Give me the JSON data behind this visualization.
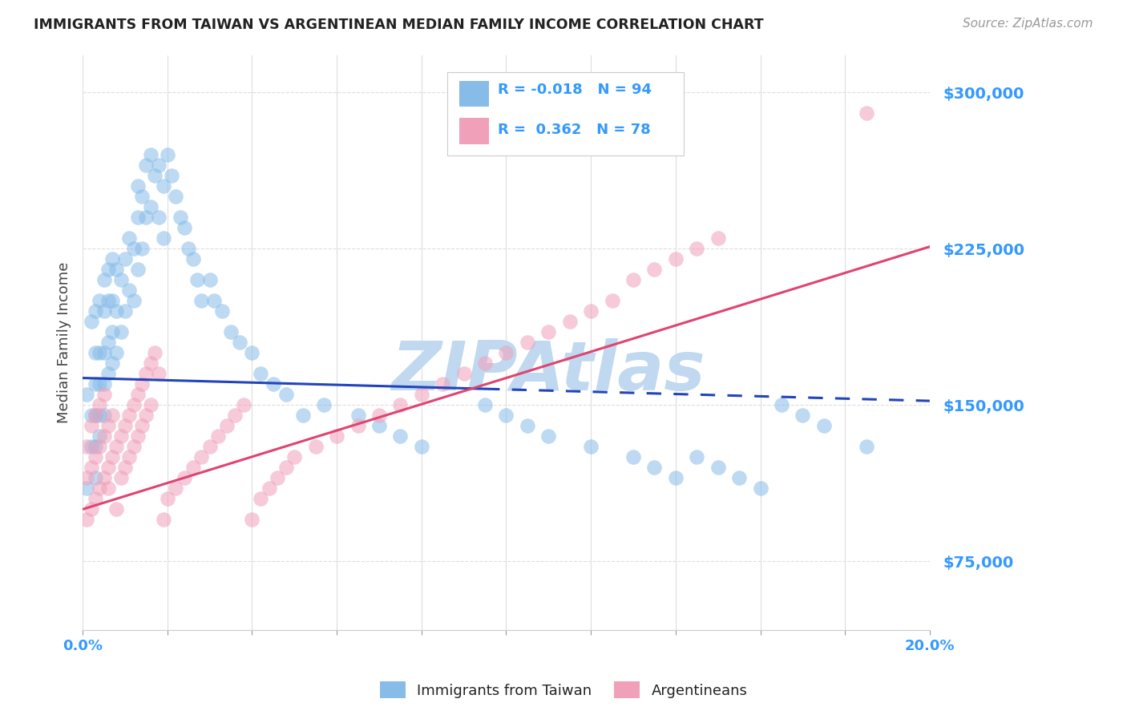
{
  "title": "IMMIGRANTS FROM TAIWAN VS ARGENTINEAN MEDIAN FAMILY INCOME CORRELATION CHART",
  "source": "Source: ZipAtlas.com",
  "ylabel": "Median Family Income",
  "yticks": [
    75000,
    150000,
    225000,
    300000
  ],
  "ytick_labels": [
    "$75,000",
    "$150,000",
    "$225,000",
    "$300,000"
  ],
  "xmin": 0.0,
  "xmax": 0.2,
  "ymin": 42000,
  "ymax": 318000,
  "watermark": "ZIPAtlas",
  "legend_R_N": [
    {
      "R": "-0.018",
      "N": "94",
      "color": "#a8c8e8"
    },
    {
      "R": "0.362",
      "N": "78",
      "color": "#f4a8be"
    }
  ],
  "legend_bottom": [
    "Immigrants from Taiwan",
    "Argentineans"
  ],
  "blue_scatter_x": [
    0.001,
    0.001,
    0.002,
    0.002,
    0.002,
    0.003,
    0.003,
    0.003,
    0.003,
    0.003,
    0.003,
    0.004,
    0.004,
    0.004,
    0.004,
    0.004,
    0.005,
    0.005,
    0.005,
    0.005,
    0.005,
    0.006,
    0.006,
    0.006,
    0.006,
    0.007,
    0.007,
    0.007,
    0.007,
    0.008,
    0.008,
    0.008,
    0.009,
    0.009,
    0.01,
    0.01,
    0.011,
    0.011,
    0.012,
    0.012,
    0.013,
    0.013,
    0.013,
    0.014,
    0.014,
    0.015,
    0.015,
    0.016,
    0.016,
    0.017,
    0.018,
    0.018,
    0.019,
    0.019,
    0.02,
    0.021,
    0.022,
    0.023,
    0.024,
    0.025,
    0.026,
    0.027,
    0.028,
    0.03,
    0.031,
    0.033,
    0.035,
    0.037,
    0.04,
    0.042,
    0.045,
    0.048,
    0.052,
    0.057,
    0.065,
    0.07,
    0.075,
    0.08,
    0.095,
    0.1,
    0.105,
    0.11,
    0.12,
    0.13,
    0.135,
    0.14,
    0.145,
    0.15,
    0.155,
    0.16,
    0.165,
    0.17,
    0.175,
    0.185
  ],
  "blue_scatter_y": [
    155000,
    110000,
    130000,
    145000,
    190000,
    175000,
    195000,
    160000,
    145000,
    130000,
    115000,
    200000,
    175000,
    160000,
    145000,
    135000,
    210000,
    195000,
    175000,
    160000,
    145000,
    215000,
    200000,
    180000,
    165000,
    220000,
    200000,
    185000,
    170000,
    215000,
    195000,
    175000,
    210000,
    185000,
    220000,
    195000,
    230000,
    205000,
    225000,
    200000,
    255000,
    240000,
    215000,
    250000,
    225000,
    265000,
    240000,
    270000,
    245000,
    260000,
    265000,
    240000,
    255000,
    230000,
    270000,
    260000,
    250000,
    240000,
    235000,
    225000,
    220000,
    210000,
    200000,
    210000,
    200000,
    195000,
    185000,
    180000,
    175000,
    165000,
    160000,
    155000,
    145000,
    150000,
    145000,
    140000,
    135000,
    130000,
    150000,
    145000,
    140000,
    135000,
    130000,
    125000,
    120000,
    115000,
    125000,
    120000,
    115000,
    110000,
    150000,
    145000,
    140000,
    130000
  ],
  "pink_scatter_x": [
    0.001,
    0.001,
    0.001,
    0.002,
    0.002,
    0.002,
    0.003,
    0.003,
    0.003,
    0.004,
    0.004,
    0.004,
    0.005,
    0.005,
    0.005,
    0.006,
    0.006,
    0.006,
    0.007,
    0.007,
    0.008,
    0.008,
    0.009,
    0.009,
    0.01,
    0.01,
    0.011,
    0.011,
    0.012,
    0.012,
    0.013,
    0.013,
    0.014,
    0.014,
    0.015,
    0.015,
    0.016,
    0.016,
    0.017,
    0.018,
    0.019,
    0.02,
    0.022,
    0.024,
    0.026,
    0.028,
    0.03,
    0.032,
    0.034,
    0.036,
    0.038,
    0.04,
    0.042,
    0.044,
    0.046,
    0.048,
    0.05,
    0.055,
    0.06,
    0.065,
    0.07,
    0.075,
    0.08,
    0.085,
    0.09,
    0.095,
    0.1,
    0.105,
    0.11,
    0.115,
    0.12,
    0.125,
    0.13,
    0.135,
    0.14,
    0.145,
    0.15,
    0.185
  ],
  "pink_scatter_y": [
    95000,
    115000,
    130000,
    100000,
    120000,
    140000,
    105000,
    125000,
    145000,
    110000,
    130000,
    150000,
    115000,
    135000,
    155000,
    120000,
    140000,
    110000,
    125000,
    145000,
    130000,
    100000,
    135000,
    115000,
    140000,
    120000,
    145000,
    125000,
    150000,
    130000,
    155000,
    135000,
    160000,
    140000,
    165000,
    145000,
    170000,
    150000,
    175000,
    165000,
    95000,
    105000,
    110000,
    115000,
    120000,
    125000,
    130000,
    135000,
    140000,
    145000,
    150000,
    95000,
    105000,
    110000,
    115000,
    120000,
    125000,
    130000,
    135000,
    140000,
    145000,
    150000,
    155000,
    160000,
    165000,
    170000,
    175000,
    180000,
    185000,
    190000,
    195000,
    200000,
    210000,
    215000,
    220000,
    225000,
    230000,
    290000
  ],
  "blue_line_x0": 0.0,
  "blue_line_x_solid_end": 0.095,
  "blue_line_x1": 0.2,
  "blue_line_y0": 163000,
  "blue_line_y1": 152000,
  "pink_line_x0": 0.0,
  "pink_line_x1": 0.2,
  "pink_line_y0": 100000,
  "pink_line_y1": 226000,
  "title_color": "#222222",
  "source_color": "#999999",
  "axis_label_color": "#3399ff",
  "ytick_color": "#3399ff",
  "xtick_color": "#3399ff",
  "scatter_blue": "#88bce8",
  "scatter_pink": "#f0a0b8",
  "trend_blue": "#2244bb",
  "trend_pink": "#e04470",
  "grid_color": "#dddddd",
  "watermark_color": "#c0d8f0",
  "background_color": "#ffffff"
}
